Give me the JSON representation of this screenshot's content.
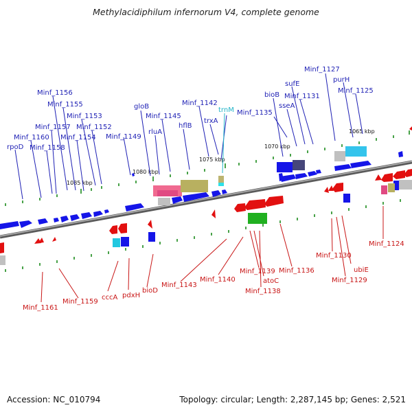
{
  "title": "Methylacidiphilum infernorum V4, complete genome",
  "footer": {
    "accession": "Accession: NC_010794",
    "summary": "Topology: circular; Length: 2,287,145 bp; Genes: 2,521"
  },
  "colors": {
    "fwd_gene": "#1515e8",
    "rev_gene": "#e21010",
    "fwd_label": "#1d1fb4",
    "rev_label": "#c81414",
    "rna_label": "#22b4c8",
    "backbone": "#888888",
    "tick": "#1a8a1a"
  },
  "kbp_labels": [
    "1065 kbp",
    "1070 kbp",
    "1075 kbp",
    "1080 kbp",
    "1085 kbp"
  ],
  "top_labels": [
    "Minf_1127",
    "purH",
    "Minf_1125",
    "sufE",
    "bioB",
    "Minf_1131",
    "sseA",
    "Minf_1135",
    "trnM",
    "Minf_1142",
    "trxA",
    "gloB",
    "Minf_1145",
    "hflB",
    "rluA",
    "Minf_1149",
    "Minf_1156",
    "Minf_1155",
    "Minf_1153",
    "Minf_1157",
    "Minf_1152",
    "Minf_1160",
    "Minf_1154",
    "rpoD",
    "Minf_1158"
  ],
  "bottom_labels": [
    "Minf_1124",
    "Minf_1130",
    "ubiE",
    "Minf_1129",
    "Minf_1136",
    "Minf_1139",
    "atoC",
    "Minf_1138",
    "Minf_1140",
    "Minf_1143",
    "bioD",
    "pdxH",
    "cccA",
    "Minf_1159",
    "Minf_1161"
  ]
}
